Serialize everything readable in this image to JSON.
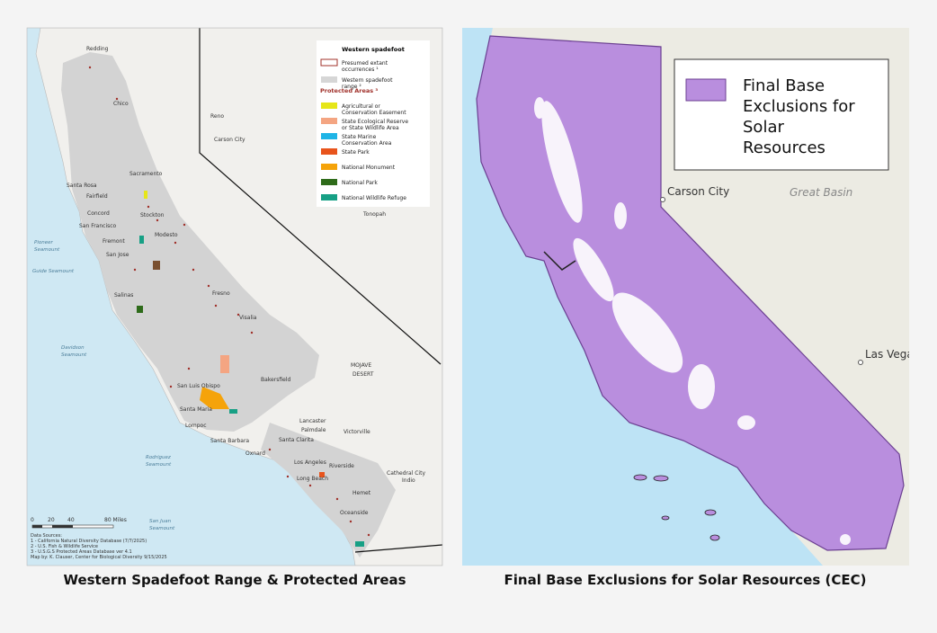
{
  "left_map": {
    "caption": "Western Spadefoot Range & Protected Areas",
    "legend": {
      "title": "Western spadefoot",
      "items": [
        {
          "label": "Presumed extant occurrences ¹",
          "color": "#a0302a"
        },
        {
          "label": "Western spadefoot range ²",
          "color": "#d6d6d6"
        }
      ],
      "protected_title": "Protected Areas ³",
      "protected_items": [
        {
          "label": "Agricultural or Conservation Easement",
          "color": "#e6e619"
        },
        {
          "label": "State Ecological Reserve or State Wildlife Area",
          "color": "#f4a582"
        },
        {
          "label": "State Marine Conservation Area",
          "color": "#1fb4e6"
        },
        {
          "label": "State Park",
          "color": "#e8541c"
        },
        {
          "label": "National Monument",
          "color": "#f5a30a"
        },
        {
          "label": "National Park",
          "color": "#2e6b1a"
        },
        {
          "label": "National Wildlife Refuge",
          "color": "#17a085"
        }
      ]
    },
    "places": [
      "Redding",
      "Chico",
      "Sacramento",
      "Santa Rosa",
      "Fairfield",
      "Concord",
      "Stockton",
      "San Francisco",
      "Fremont",
      "Modesto",
      "San Jose",
      "Salinas",
      "Fresno",
      "Visalia",
      "San Luis Obispo",
      "Santa Maria",
      "Lompoc",
      "Bakersfield",
      "Santa Barbara",
      "Oxnard",
      "Santa Clarita",
      "Lancaster",
      "Palmdale",
      "Victorville",
      "Los Angeles",
      "Riverside",
      "Long Beach",
      "Hemet",
      "Oceanside",
      "Cathedral City",
      "Indio",
      "Reno",
      "Carson City",
      "Tonopah",
      "MOJAVE",
      "DESERT",
      "Pioneer",
      "Seamount",
      "Guide Seamount",
      "Davidson",
      "Seamount",
      "Rodriguez",
      "Seamount",
      "San Juan",
      "Seamount"
    ],
    "scale": [
      "0",
      "20",
      "40",
      "80 Miles"
    ],
    "sources": [
      "Data Sources:",
      "1 - California Natural Diversity Database (7/7/2025)",
      "2 - U.S. Fish & Wildlife Service",
      "3 - U.S.G.S Protected Areas Database ver 4.1",
      "Map by: K. Clauser, Center for Biological Diversity 9/15/2025"
    ]
  },
  "right_map": {
    "caption": "Final Base Exclusions for Solar Resources (CEC)",
    "legend": {
      "label": "Final Base Exclusions for Solar Resources",
      "color": "#b98ede"
    },
    "places": [
      "Carson City",
      "Great Basin",
      "Las Vegas"
    ]
  }
}
